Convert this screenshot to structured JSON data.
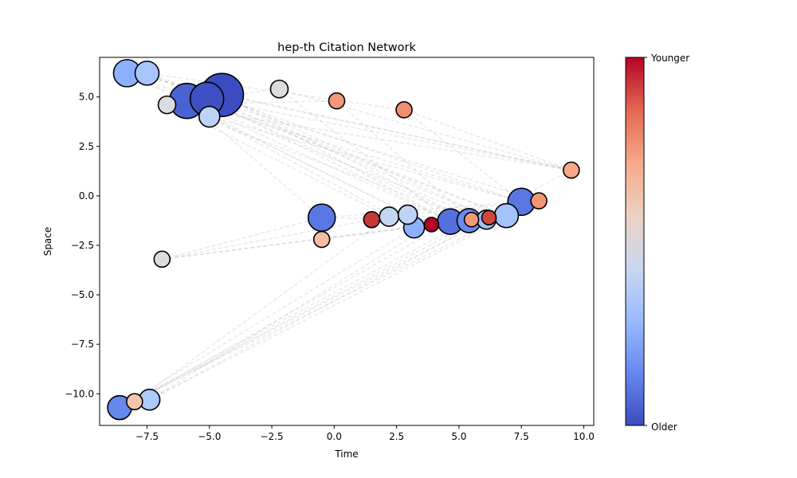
{
  "chart_data": {
    "type": "scatter",
    "title": "hep-th Citation Network",
    "xlabel": "Time",
    "ylabel": "Space",
    "xlim": [
      -9.4,
      10.4
    ],
    "ylim": [
      -11.6,
      7.0
    ],
    "xticks": [
      -7.5,
      -5.0,
      -2.5,
      0.0,
      2.5,
      5.0,
      7.5,
      10.0
    ],
    "xtick_labels": [
      "−7.5",
      "−5.0",
      "−2.5",
      "0.0",
      "2.5",
      "5.0",
      "7.5",
      "10.0"
    ],
    "yticks": [
      5.0,
      2.5,
      0.0,
      -2.5,
      -5.0,
      -7.5,
      -10.0
    ],
    "ytick_labels": [
      "5.0",
      "2.5",
      "0.0",
      "−2.5",
      "−5.0",
      "−7.5",
      "−10.0"
    ],
    "grid": false,
    "colorbar": {
      "colormap": "coolwarm",
      "label_top": "Younger",
      "label_bottom": "Older",
      "colors": [
        "#3b4cc0",
        "#6788ee",
        "#9abbff",
        "#c9d7f0",
        "#edd1c2",
        "#f7a889",
        "#e26952",
        "#b40426"
      ]
    },
    "edge_style": {
      "color": "#aaaaaa",
      "dash": "dashed",
      "opacity": 0.25
    },
    "nodes": [
      {
        "x": -8.3,
        "y": 6.2,
        "size": 17,
        "color": "#8db0fe"
      },
      {
        "x": -7.5,
        "y": 6.2,
        "size": 15,
        "color": "#a7c5fe"
      },
      {
        "x": -6.7,
        "y": 4.6,
        "size": 11,
        "color": "#d9dce1"
      },
      {
        "x": -5.9,
        "y": 4.8,
        "size": 22,
        "color": "#4a63d3"
      },
      {
        "x": -5.1,
        "y": 4.9,
        "size": 21,
        "color": "#3d50c3"
      },
      {
        "x": -4.5,
        "y": 5.1,
        "size": 27,
        "color": "#3b4cc0"
      },
      {
        "x": -5.0,
        "y": 4.0,
        "size": 13,
        "color": "#bcd2f7"
      },
      {
        "x": -2.2,
        "y": 5.4,
        "size": 11,
        "color": "#dcdddd"
      },
      {
        "x": 0.1,
        "y": 4.8,
        "size": 10,
        "color": "#f4987a"
      },
      {
        "x": 2.8,
        "y": 4.35,
        "size": 10,
        "color": "#f18d6f"
      },
      {
        "x": 9.5,
        "y": 1.3,
        "size": 10,
        "color": "#f7a889"
      },
      {
        "x": 7.5,
        "y": -0.3,
        "size": 17,
        "color": "#5977e3"
      },
      {
        "x": 8.2,
        "y": -0.25,
        "size": 10,
        "color": "#f39475"
      },
      {
        "x": -0.5,
        "y": -1.1,
        "size": 17,
        "color": "#5a78e4"
      },
      {
        "x": -0.5,
        "y": -2.2,
        "size": 10,
        "color": "#f6bda2"
      },
      {
        "x": 1.5,
        "y": -1.2,
        "size": 10,
        "color": "#c83836"
      },
      {
        "x": 2.2,
        "y": -1.05,
        "size": 12,
        "color": "#c5d6f2"
      },
      {
        "x": 2.95,
        "y": -0.95,
        "size": 12,
        "color": "#bfd3f6"
      },
      {
        "x": 3.2,
        "y": -1.6,
        "size": 13,
        "color": "#8caffe"
      },
      {
        "x": 3.9,
        "y": -1.45,
        "size": 9,
        "color": "#b40426"
      },
      {
        "x": 4.65,
        "y": -1.3,
        "size": 16,
        "color": "#5470de"
      },
      {
        "x": 5.4,
        "y": -1.25,
        "size": 15,
        "color": "#6a8bef"
      },
      {
        "x": 5.5,
        "y": -1.2,
        "size": 9,
        "color": "#f49a7b"
      },
      {
        "x": 6.1,
        "y": -1.2,
        "size": 12,
        "color": "#9ebeff"
      },
      {
        "x": 6.2,
        "y": -1.1,
        "size": 9,
        "color": "#d0473d"
      },
      {
        "x": 6.9,
        "y": -1.0,
        "size": 15,
        "color": "#a3c2fe"
      },
      {
        "x": -6.9,
        "y": -3.2,
        "size": 10,
        "color": "#dddcdc"
      },
      {
        "x": -8.6,
        "y": -10.7,
        "size": 15,
        "color": "#6687ed"
      },
      {
        "x": -8.0,
        "y": -10.4,
        "size": 10,
        "color": "#f4c5ad"
      },
      {
        "x": -7.4,
        "y": -10.3,
        "size": 13,
        "color": "#aec9fc"
      }
    ],
    "edges": [
      [
        0,
        10
      ],
      [
        0,
        20
      ],
      [
        0,
        25
      ],
      [
        1,
        11
      ],
      [
        1,
        21
      ],
      [
        2,
        16
      ],
      [
        2,
        10
      ],
      [
        3,
        23
      ],
      [
        3,
        11
      ],
      [
        4,
        20
      ],
      [
        4,
        25
      ],
      [
        4,
        12
      ],
      [
        5,
        21
      ],
      [
        5,
        10
      ],
      [
        5,
        24
      ],
      [
        6,
        19
      ],
      [
        6,
        11
      ],
      [
        7,
        10
      ],
      [
        7,
        20
      ],
      [
        8,
        22
      ],
      [
        9,
        10
      ],
      [
        9,
        11
      ],
      [
        0,
        5
      ],
      [
        1,
        9
      ],
      [
        2,
        8
      ],
      [
        3,
        7
      ],
      [
        13,
        11
      ],
      [
        13,
        21
      ],
      [
        14,
        20
      ],
      [
        15,
        23
      ],
      [
        16,
        25
      ],
      [
        17,
        12
      ],
      [
        26,
        13
      ],
      [
        26,
        20
      ],
      [
        26,
        21
      ],
      [
        26,
        15
      ],
      [
        27,
        11
      ],
      [
        27,
        25
      ],
      [
        27,
        21
      ],
      [
        28,
        10
      ],
      [
        28,
        20
      ],
      [
        29,
        12
      ],
      [
        29,
        23
      ],
      [
        27,
        18
      ],
      [
        28,
        16
      ],
      [
        29,
        19
      ],
      [
        0,
        17
      ],
      [
        6,
        18
      ],
      [
        3,
        13
      ],
      [
        5,
        20
      ],
      [
        4,
        10
      ],
      [
        1,
        24
      ],
      [
        2,
        22
      ]
    ]
  }
}
